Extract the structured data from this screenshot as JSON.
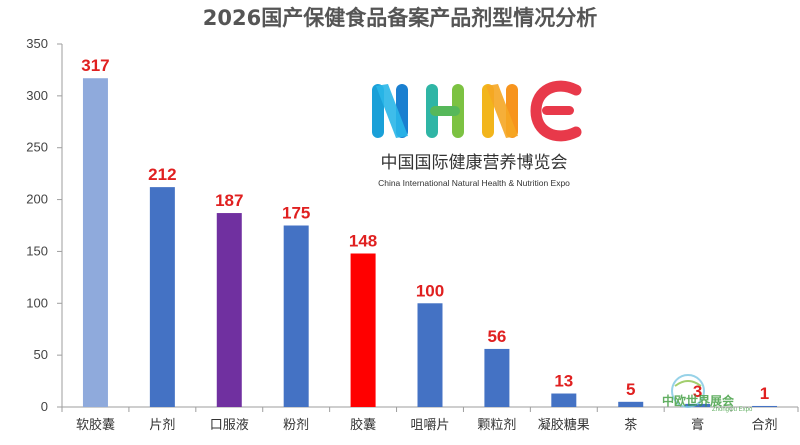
{
  "chart_data": {
    "type": "bar",
    "title": "2026国产保健食品备案产品剂型情况分析",
    "xlabel": "",
    "ylabel": "",
    "categories": [
      "软胶囊",
      "片剂",
      "口服液",
      "粉剂",
      "胶囊",
      "咀嚼片",
      "颗粒剂",
      "凝胶糖果",
      "茶",
      "膏",
      "合剂"
    ],
    "values": [
      317,
      212,
      187,
      175,
      148,
      100,
      56,
      13,
      5,
      3,
      1
    ],
    "bar_colors": [
      "#8faadc",
      "#4472c4",
      "#7030a0",
      "#4472c4",
      "#ff0000",
      "#4472c4",
      "#4472c4",
      "#4472c4",
      "#4472c4",
      "#4472c4",
      "#4472c4"
    ],
    "label_color": "#e02020",
    "ylim": [
      0,
      350
    ],
    "yticks": [
      0,
      50,
      100,
      150,
      200,
      250,
      300,
      350
    ],
    "grid": false,
    "legend": "none"
  },
  "logo": {
    "letters": [
      "N",
      "H",
      "N",
      "E"
    ],
    "subtitle_cn": "中国国际健康营养博览会",
    "subtitle_en": "China International Natural Health & Nutrition Expo"
  },
  "watermark": {
    "cn": "中欧世界展会",
    "en": "ZhongOu Expo"
  }
}
